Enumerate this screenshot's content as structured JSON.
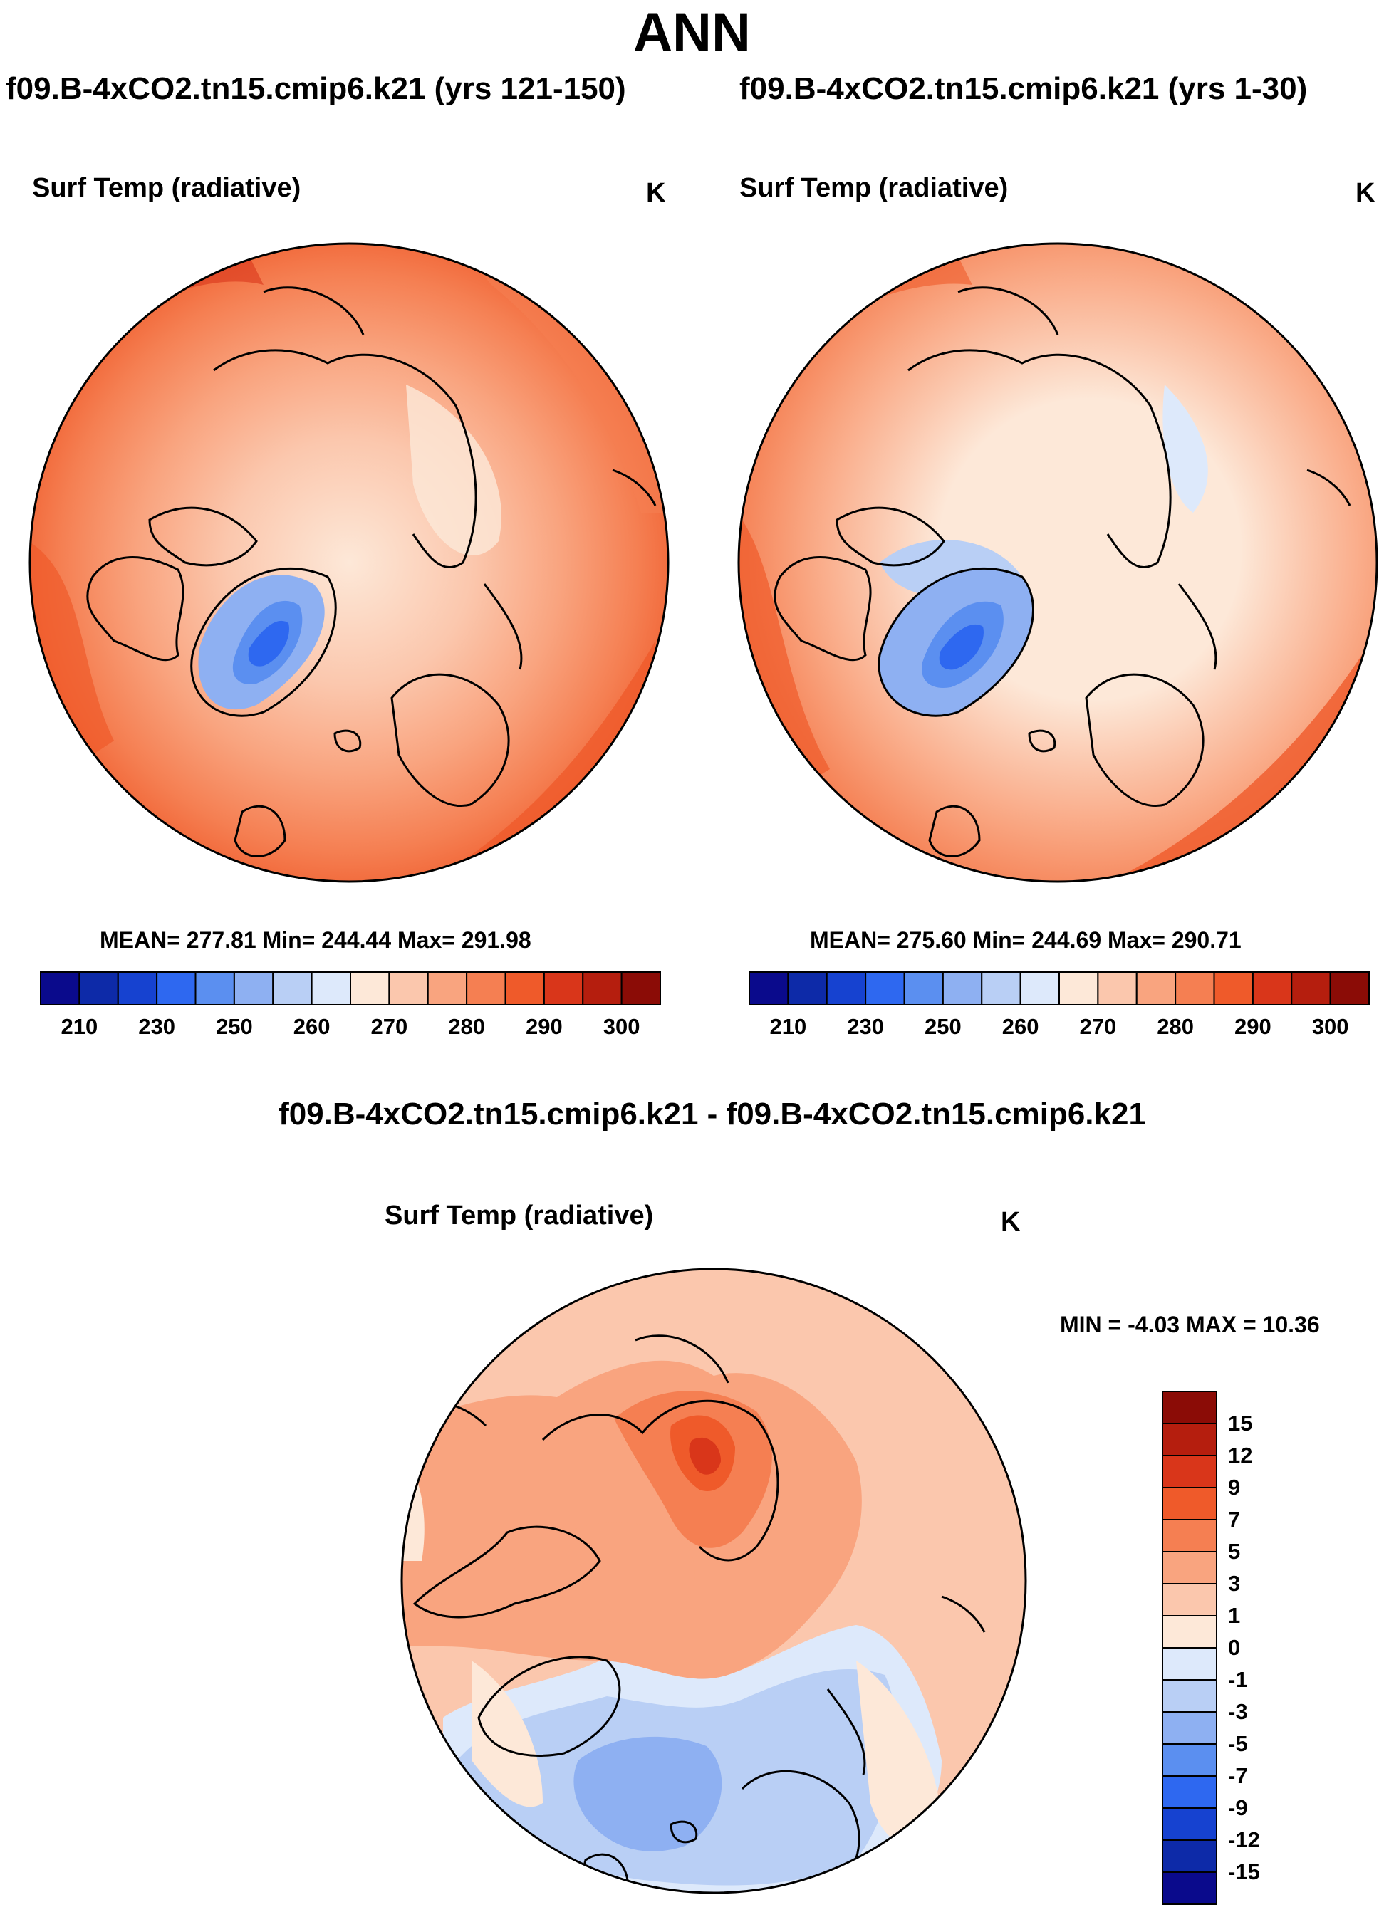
{
  "page_title": "ANN",
  "chart_data": [
    {
      "type": "heatmap",
      "projection": "north polar stereographic",
      "case_title": "f09.B-4xCO2.tn15.cmip6.k21 (yrs 121-150)",
      "variable": "Surf Temp (radiative)",
      "units": "K",
      "stats_text": "MEAN= 277.81  Min= 244.44  Max= 291.98",
      "mean": 277.81,
      "min": 244.44,
      "max": 291.98,
      "colorbar": {
        "levels": [
          210,
          220,
          230,
          240,
          250,
          255,
          260,
          265,
          270,
          275,
          280,
          285,
          290,
          295,
          300
        ],
        "tick_labels": [
          "210",
          "230",
          "250",
          "260",
          "270",
          "280",
          "290",
          "300"
        ],
        "colors": [
          "#0a0a8c",
          "#0d2aa8",
          "#1642d0",
          "#2e68f0",
          "#5b8ff0",
          "#8eb0f2",
          "#b9cff5",
          "#dde9fb",
          "#fde8d8",
          "#fbc7ad",
          "#f9a47f",
          "#f57f52",
          "#ef5a2a",
          "#d9361a",
          "#b51e0e",
          "#8b0c06"
        ]
      }
    },
    {
      "type": "heatmap",
      "projection": "north polar stereographic",
      "case_title": "f09.B-4xCO2.tn15.cmip6.k21 (yrs 1-30)",
      "variable": "Surf Temp (radiative)",
      "units": "K",
      "stats_text": "MEAN= 275.60  Min= 244.69  Max= 290.71",
      "mean": 275.6,
      "min": 244.69,
      "max": 290.71,
      "colorbar": {
        "levels": [
          210,
          220,
          230,
          240,
          250,
          255,
          260,
          265,
          270,
          275,
          280,
          285,
          290,
          295,
          300
        ],
        "tick_labels": [
          "210",
          "230",
          "250",
          "260",
          "270",
          "280",
          "290",
          "300"
        ],
        "colors": [
          "#0a0a8c",
          "#0d2aa8",
          "#1642d0",
          "#2e68f0",
          "#5b8ff0",
          "#8eb0f2",
          "#b9cff5",
          "#dde9fb",
          "#fde8d8",
          "#fbc7ad",
          "#f9a47f",
          "#f57f52",
          "#ef5a2a",
          "#d9361a",
          "#b51e0e",
          "#8b0c06"
        ]
      }
    },
    {
      "type": "heatmap",
      "projection": "north polar stereographic",
      "case_title": "f09.B-4xCO2.tn15.cmip6.k21 - f09.B-4xCO2.tn15.cmip6.k21",
      "variable": "Surf Temp (radiative)",
      "units": "K",
      "stats_text": "MIN =  -4.03 MAX =  10.36",
      "min": -4.03,
      "max": 10.36,
      "colorbar": {
        "levels": [
          -15,
          -12,
          -9,
          -7,
          -5,
          -3,
          -1,
          0,
          1,
          3,
          5,
          7,
          9,
          12,
          15
        ],
        "tick_labels": [
          "-15",
          "-12",
          "-9",
          "-7",
          "-5",
          "-3",
          "-1",
          "0",
          "1",
          "3",
          "5",
          "7",
          "9",
          "12",
          "15"
        ],
        "colors": [
          "#0a0a8c",
          "#0d2aa8",
          "#1642d0",
          "#2e68f0",
          "#5b8ff0",
          "#8eb0f2",
          "#b9cff5",
          "#dde9fb",
          "#fde8d8",
          "#fbc7ad",
          "#f9a47f",
          "#f57f52",
          "#ef5a2a",
          "#d9361a",
          "#b51e0e",
          "#8b0c06"
        ]
      }
    }
  ]
}
